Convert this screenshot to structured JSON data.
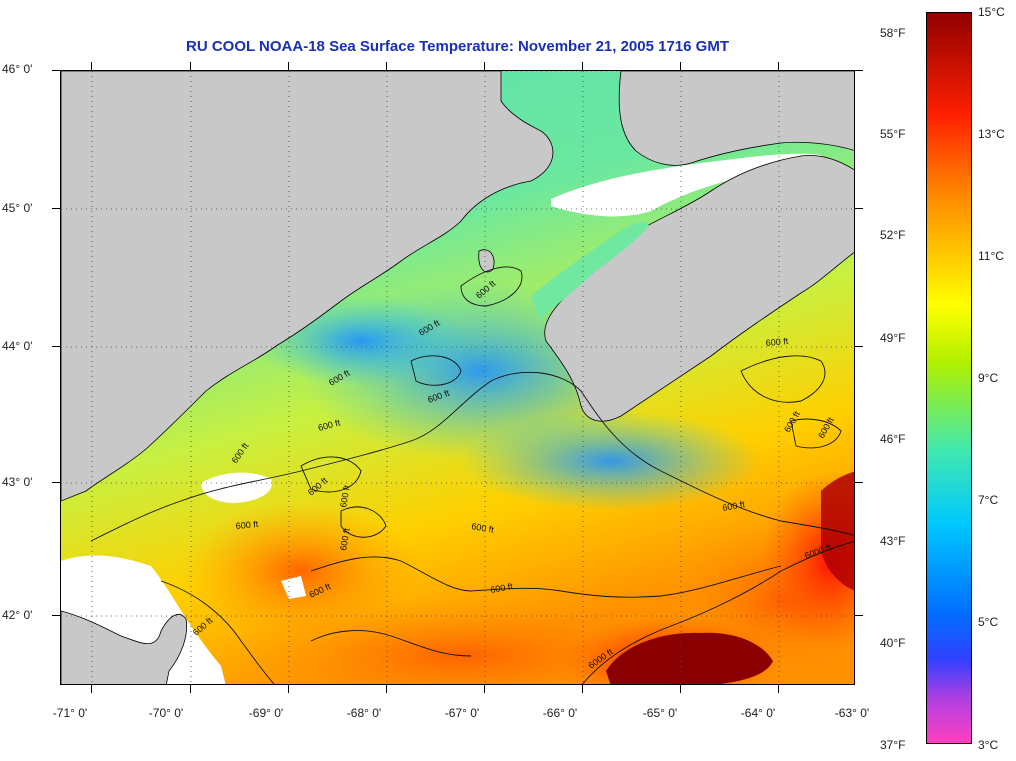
{
  "title": "RU COOL  NOAA-18  Sea Surface Temperature:  November 21, 2005 1716 GMT",
  "map": {
    "lat_labels": [
      "46° 0'",
      "45° 0'",
      "44° 0'",
      "43° 0'",
      "42° 0'"
    ],
    "lon_labels": [
      "-71° 0'",
      "-70° 0'",
      "-69° 0'",
      "-68° 0'",
      "-67° 0'",
      "-66° 0'",
      "-65° 0'",
      "-64° 0'",
      "-63° 0'"
    ],
    "contour_labels": [
      "600 ft",
      "600 ft",
      "600 ft",
      "600 ft",
      "600 ft",
      "600 ft",
      "600 ft",
      "600 ft",
      "600 ft",
      "600 ft",
      "600 ft",
      "600 ft",
      "600 ft",
      "600 ft",
      "6000 ft",
      "6000 ft"
    ],
    "colors": {
      "land": "#c8c8c8",
      "cloud": "#ffffff",
      "coast": "#000000"
    }
  },
  "colorbar": {
    "fahrenheit": [
      "58°F",
      "55°F",
      "52°F",
      "49°F",
      "46°F",
      "43°F",
      "40°F",
      "37°F"
    ],
    "celsius": [
      "15°C",
      "13°C",
      "11°C",
      "9°C",
      "7°C",
      "5°C",
      "3°C"
    ]
  }
}
